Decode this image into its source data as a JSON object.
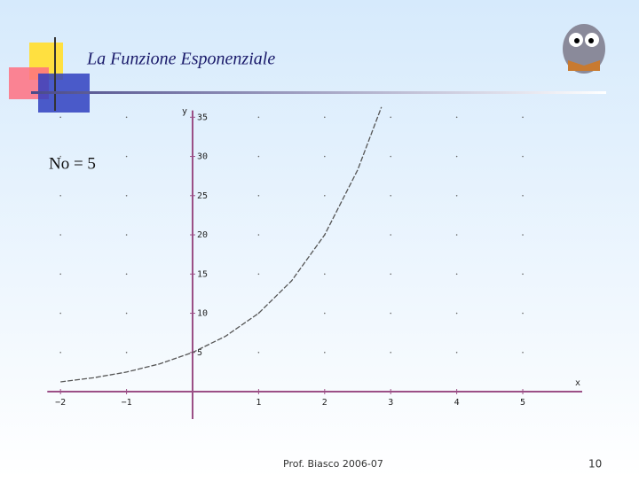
{
  "slide_title": "La Funzione Esponenziale",
  "note": "No = 5",
  "footer": "Prof. Biasco  2006-07",
  "page_number": "10",
  "chart_data": {
    "type": "line",
    "x_label": "x",
    "y_label": "y",
    "x": [
      -2,
      -1.5,
      -1,
      -0.5,
      0,
      0.5,
      1,
      1.5,
      2,
      2.5,
      2.86
    ],
    "series": [
      {
        "color": "#555555",
        "values": [
          1.25,
          1.77,
          2.5,
          3.54,
          5,
          7.07,
          10,
          14.14,
          20,
          28.28,
          36.3
        ]
      }
    ],
    "xlim": [
      -2.2,
      5.9
    ],
    "ylim": [
      -3.5,
      37
    ],
    "xticks": [
      {
        "value": -2,
        "label": "−2"
      },
      {
        "value": -1,
        "label": "−1"
      },
      1,
      2,
      3,
      4,
      5
    ],
    "yticks": [
      5,
      10,
      15,
      20,
      25,
      30,
      35
    ],
    "grid": true
  }
}
